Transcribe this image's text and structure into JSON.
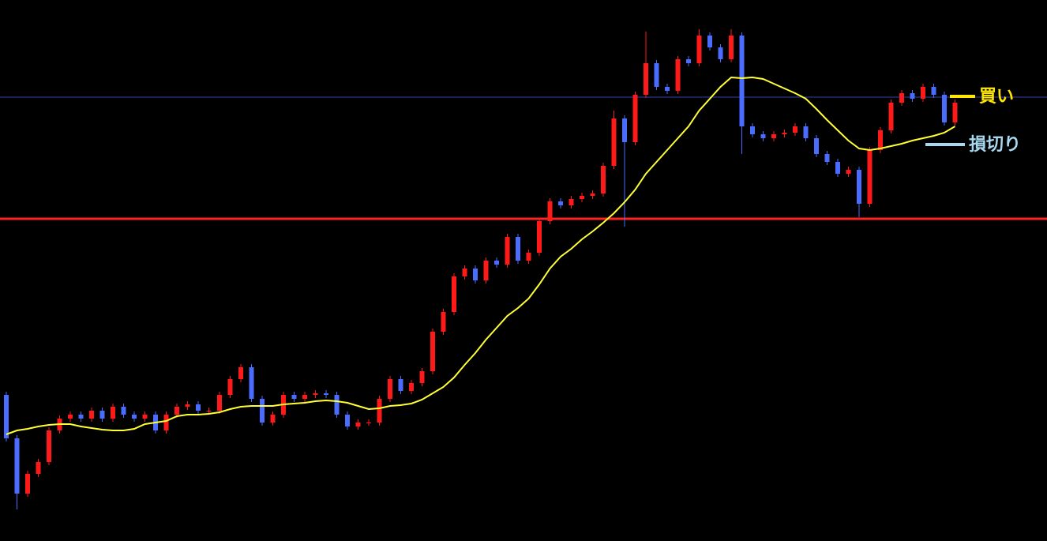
{
  "chart_data": {
    "type": "candlestick",
    "ylim": [
      0,
      685
    ],
    "up_color": "#ff1a1a",
    "down_color": "#4a6cff",
    "open": [
      185,
      130,
      60,
      85,
      100,
      140,
      155,
      160,
      155,
      165,
      155,
      170,
      160,
      155,
      160,
      140,
      160,
      170,
      173,
      165,
      165,
      185,
      205,
      220,
      180,
      150,
      160,
      185,
      180,
      185,
      187,
      185,
      160,
      145,
      150,
      150,
      180,
      205,
      190,
      200,
      215,
      265,
      290,
      335,
      345,
      330,
      355,
      350,
      385,
      355,
      365,
      405,
      430,
      425,
      433,
      437,
      440,
      475,
      535,
      505,
      565,
      605,
      575,
      570,
      610,
      605,
      640,
      625,
      610,
      640,
      525,
      515,
      510,
      515,
      517,
      525,
      510,
      490,
      480,
      465,
      470,
      427,
      495,
      520,
      555,
      567,
      560,
      575,
      565,
      530
    ],
    "high": [
      189,
      134,
      89,
      104,
      144,
      159,
      164,
      164,
      169,
      169,
      174,
      174,
      164,
      164,
      164,
      164,
      174,
      177,
      177,
      169,
      189,
      209,
      224,
      224,
      184,
      164,
      189,
      189,
      189,
      191,
      191,
      189,
      164,
      154,
      154,
      184,
      209,
      209,
      204,
      219,
      269,
      294,
      339,
      349,
      349,
      359,
      359,
      389,
      389,
      369,
      409,
      434,
      434,
      437,
      441,
      444,
      479,
      545,
      539,
      569,
      645,
      609,
      579,
      614,
      614,
      648,
      644,
      629,
      648,
      644,
      529,
      519,
      519,
      521,
      529,
      529,
      514,
      494,
      484,
      474,
      474,
      499,
      524,
      559,
      571,
      571,
      579,
      579,
      569,
      559
    ],
    "low": [
      126,
      40,
      56,
      81,
      96,
      136,
      151,
      151,
      151,
      151,
      151,
      156,
      151,
      151,
      136,
      136,
      156,
      166,
      161,
      161,
      161,
      181,
      201,
      176,
      146,
      146,
      156,
      176,
      176,
      181,
      181,
      156,
      141,
      141,
      146,
      146,
      176,
      186,
      186,
      196,
      211,
      261,
      286,
      331,
      326,
      326,
      346,
      346,
      351,
      351,
      361,
      401,
      421,
      421,
      429,
      433,
      436,
      471,
      398,
      501,
      561,
      571,
      566,
      566,
      601,
      601,
      621,
      606,
      606,
      490,
      511,
      506,
      506,
      511,
      513,
      506,
      486,
      476,
      461,
      461,
      410,
      423,
      491,
      516,
      551,
      556,
      556,
      561,
      526,
      526
    ],
    "close": [
      130,
      60,
      85,
      100,
      140,
      155,
      160,
      155,
      165,
      155,
      170,
      160,
      155,
      160,
      140,
      160,
      170,
      173,
      165,
      165,
      185,
      205,
      220,
      180,
      150,
      160,
      185,
      180,
      185,
      187,
      185,
      160,
      145,
      150,
      150,
      180,
      205,
      190,
      200,
      215,
      265,
      290,
      335,
      345,
      330,
      355,
      350,
      385,
      355,
      365,
      405,
      430,
      425,
      433,
      437,
      440,
      475,
      535,
      505,
      565,
      605,
      575,
      570,
      610,
      605,
      640,
      625,
      610,
      640,
      525,
      515,
      510,
      515,
      517,
      525,
      510,
      490,
      480,
      465,
      470,
      427,
      495,
      520,
      555,
      567,
      560,
      575,
      565,
      530,
      555
    ],
    "series": [
      {
        "color": "#ffff33",
        "values": [
          135,
          140,
          142,
          145,
          147,
          148,
          148,
          145,
          143,
          141,
          140,
          140,
          142,
          148,
          150,
          152,
          158,
          160,
          160,
          161,
          163,
          167,
          170,
          171,
          171,
          171,
          173,
          174,
          175,
          177,
          178,
          177,
          175,
          171,
          167,
          168,
          171,
          172,
          174,
          179,
          187,
          195,
          207,
          223,
          238,
          255,
          270,
          285,
          295,
          307,
          325,
          345,
          360,
          370,
          382,
          392,
          403,
          415,
          429,
          445,
          465,
          480,
          495,
          510,
          525,
          545,
          560,
          575,
          587,
          586,
          587,
          585,
          579,
          573,
          567,
          560,
          547,
          533,
          520,
          507,
          497,
          495,
          497,
          500,
          503,
          507,
          510,
          513,
          517,
          525
        ]
      }
    ],
    "levels": [
      {
        "value": 408,
        "color": "#ff2222"
      },
      {
        "value": 562,
        "color": "#3344aa"
      }
    ],
    "annotations": [
      {
        "text": "買い",
        "value": 563,
        "color": "#ffe600"
      },
      {
        "text": "損切り",
        "value": 502,
        "color": "#a8d8f0"
      }
    ]
  }
}
